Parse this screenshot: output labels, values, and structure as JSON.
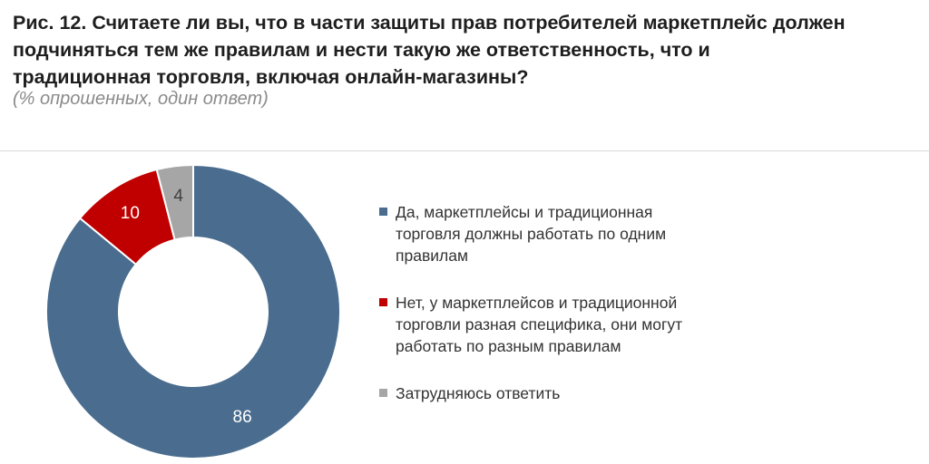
{
  "title_lines": [
    "Рис. 12. Считаете ли вы, что в части защиты прав потребителей маркетплейс должен",
    "подчиняться тем же правилам и нести такую же ответственность, что и",
    "традиционная торговля, включая онлайн-магазины?"
  ],
  "subtitle": "(% опрошенных, один ответ)",
  "chart_data": {
    "type": "pie",
    "donut": true,
    "title": "Рис. 12. Считаете ли вы, что в части защиты прав потребителей маркетплейс должен подчиняться тем же правилам и нести такую же ответственность, что и традиционная торговля, включая онлайн-магазины?",
    "subtitle": "(% опрошенных, один ответ)",
    "legend_position": "right",
    "slices": [
      {
        "label": "Да, маркетплейсы и традиционная торговля должны работать по одним правилам",
        "value": 86,
        "color": "#4a6d8f",
        "label_color": "#ffffff"
      },
      {
        "label": "Нет, у маркетплейсов и традиционной торговли разная специфика, они могут работать по разным правилам",
        "value": 10,
        "color": "#c00000",
        "label_color": "#ffffff"
      },
      {
        "label": "Затрудняюсь ответить",
        "value": 4,
        "color": "#a6a6a6",
        "label_color": "#404040"
      }
    ]
  },
  "legend": {
    "items": [
      {
        "lines": [
          "Да, маркетплейсы и традиционная",
          "торговля должны работать по одним",
          "правилам"
        ],
        "color": "#4a6d8f"
      },
      {
        "lines": [
          "Нет, у маркетплейсов и традиционной",
          "торговли разная специфика, они могут",
          "работать по разным правилам"
        ],
        "color": "#c00000"
      },
      {
        "lines": [
          "Затрудняюсь ответить"
        ],
        "color": "#a6a6a6"
      }
    ]
  }
}
